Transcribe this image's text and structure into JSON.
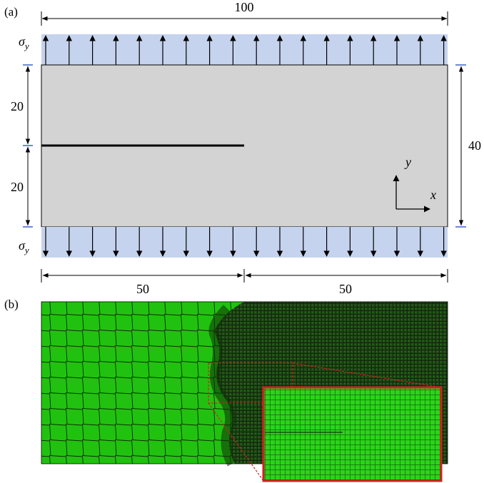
{
  "panels": {
    "a": {
      "label": "(a)"
    },
    "b": {
      "label": "(b)"
    }
  },
  "dimensions": {
    "width_total": "100",
    "height_total": "40",
    "upper_half": "20",
    "lower_half": "20",
    "crack_length": "50",
    "ligament_length": "50"
  },
  "loads": {
    "top_symbol": "σ",
    "top_subscript": "y",
    "bottom_symbol": "σ",
    "bottom_subscript": "y"
  },
  "axes": {
    "x": "x",
    "y": "y"
  },
  "colors": {
    "plate_fill": "#d3d3d3",
    "load_band": "#c6d3ee",
    "tick_blue": "#3a63c8",
    "mesh_green": "#21c20f",
    "mesh_dark": "#1c3f14",
    "inset_border": "#d81e1e"
  }
}
